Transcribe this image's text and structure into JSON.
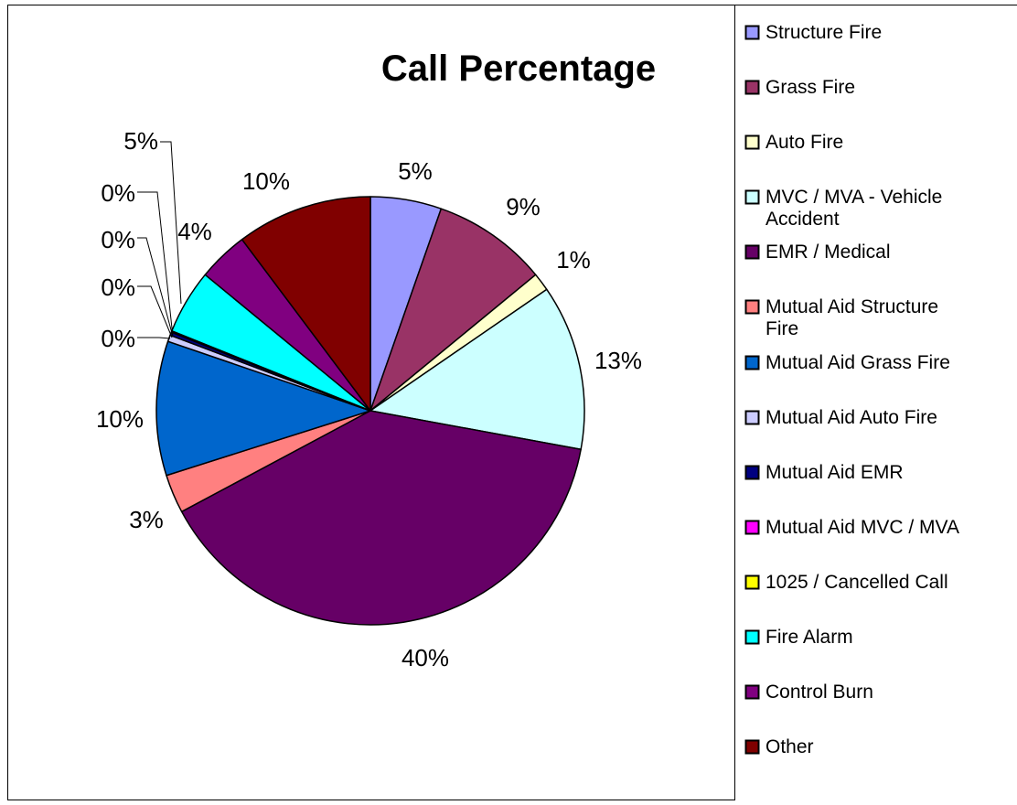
{
  "chart_data": {
    "type": "pie",
    "title": "Call Percentage",
    "legend_position": "right",
    "slices": [
      {
        "label": "Structure Fire",
        "value": 5.5,
        "display": "5%",
        "color": "#9999ff"
      },
      {
        "label": "Grass Fire",
        "value": 8.9,
        "display": "9%",
        "color": "#993366"
      },
      {
        "label": "Auto Fire",
        "value": 1.4,
        "display": "1%",
        "color": "#ffffcc"
      },
      {
        "label": "MVC / MVA - Vehicle Accident",
        "value": 12.8,
        "display": "13%",
        "color": "#ccffff"
      },
      {
        "label": "EMR / Medical",
        "value": 40.3,
        "display": "40%",
        "color": "#660066"
      },
      {
        "label": "Mutual Aid Structure Fire",
        "value": 3.0,
        "display": "3%",
        "color": "#ff8080"
      },
      {
        "label": "Mutual Aid Grass Fire",
        "value": 10.4,
        "display": "10%",
        "color": "#0066cc"
      },
      {
        "label": "Mutual Aid Auto Fire",
        "value": 0.5,
        "display": "0%",
        "color": "#ccccff"
      },
      {
        "label": "Mutual Aid EMR",
        "value": 0.25,
        "display": "0%",
        "color": "#000080"
      },
      {
        "label": "Mutual Aid MVC / MVA",
        "value": 0.05,
        "display": "0%",
        "color": "#ff00ff"
      },
      {
        "label": "1025 / Cancelled Call",
        "value": 0.05,
        "display": "0%",
        "color": "#ffff00"
      },
      {
        "label": "Fire Alarm",
        "value": 5.0,
        "display": "5%",
        "color": "#00ffff"
      },
      {
        "label": "Control Burn",
        "value": 3.9,
        "display": "4%",
        "color": "#800080"
      },
      {
        "label": "Other",
        "value": 10.5,
        "display": "10%",
        "color": "#800000"
      }
    ]
  }
}
